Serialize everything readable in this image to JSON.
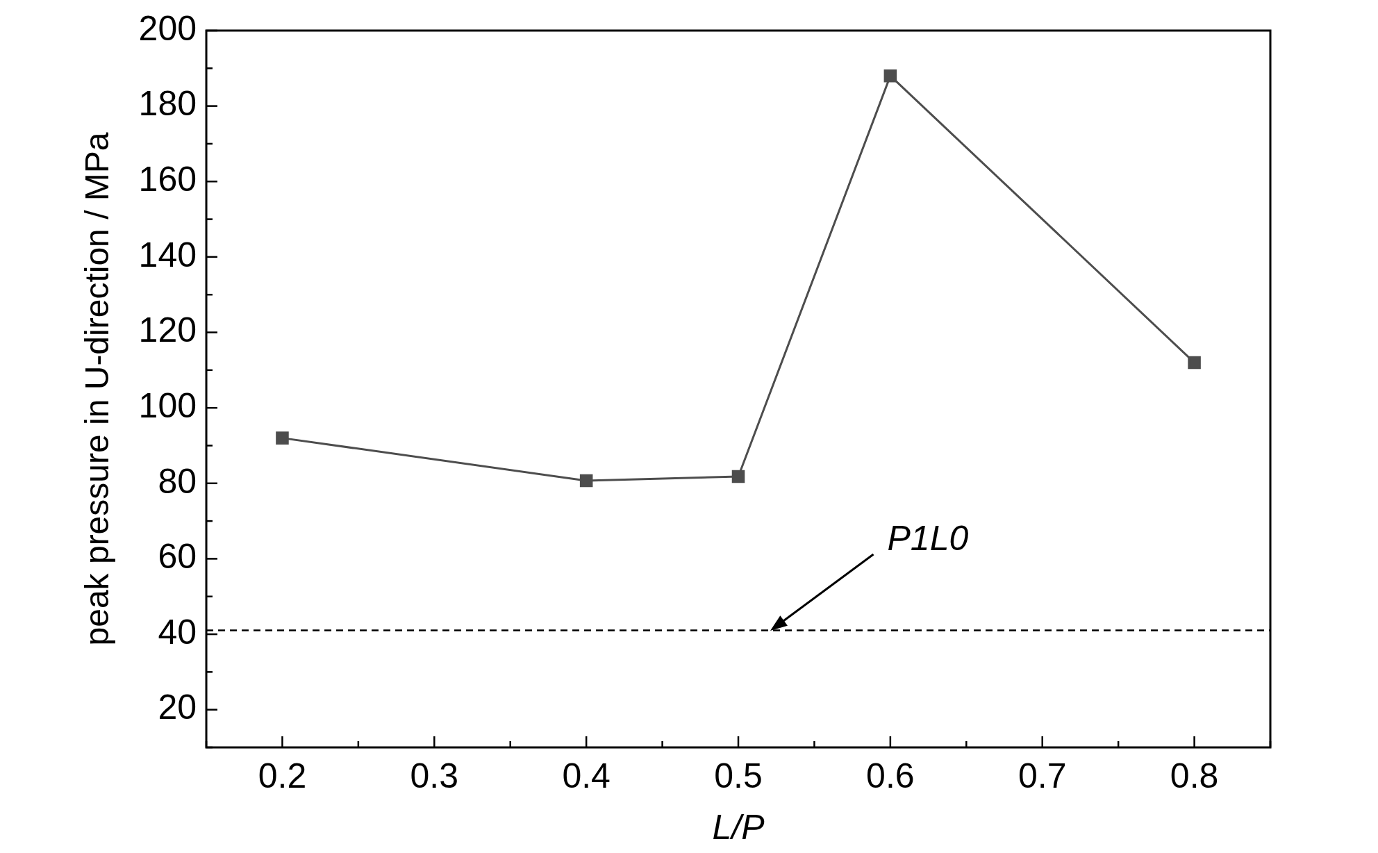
{
  "chart_data": {
    "type": "line",
    "xlabel": "L/P",
    "ylabel": "peak pressure in U-direction / MPa",
    "x": [
      0.2,
      0.4,
      0.5,
      0.6,
      0.8
    ],
    "series": [
      {
        "color": "#4d4d4d",
        "values": [
          92,
          80.7,
          81.8,
          188,
          112
        ]
      }
    ],
    "xlim": [
      0.15,
      0.85
    ],
    "xticks": [
      0.2,
      0.3,
      0.4,
      0.5,
      0.6,
      0.7,
      0.8
    ],
    "ylim": [
      10,
      200
    ],
    "yticks": [
      20,
      40,
      60,
      80,
      100,
      120,
      140,
      160,
      180,
      200
    ],
    "ref_lines": [
      {
        "axis": "y",
        "value": 41,
        "label": "P1L0",
        "color": "#000000",
        "line_style": "dashed"
      }
    ],
    "grid": false,
    "legend": false,
    "marker": "square",
    "line_style": "solid"
  }
}
